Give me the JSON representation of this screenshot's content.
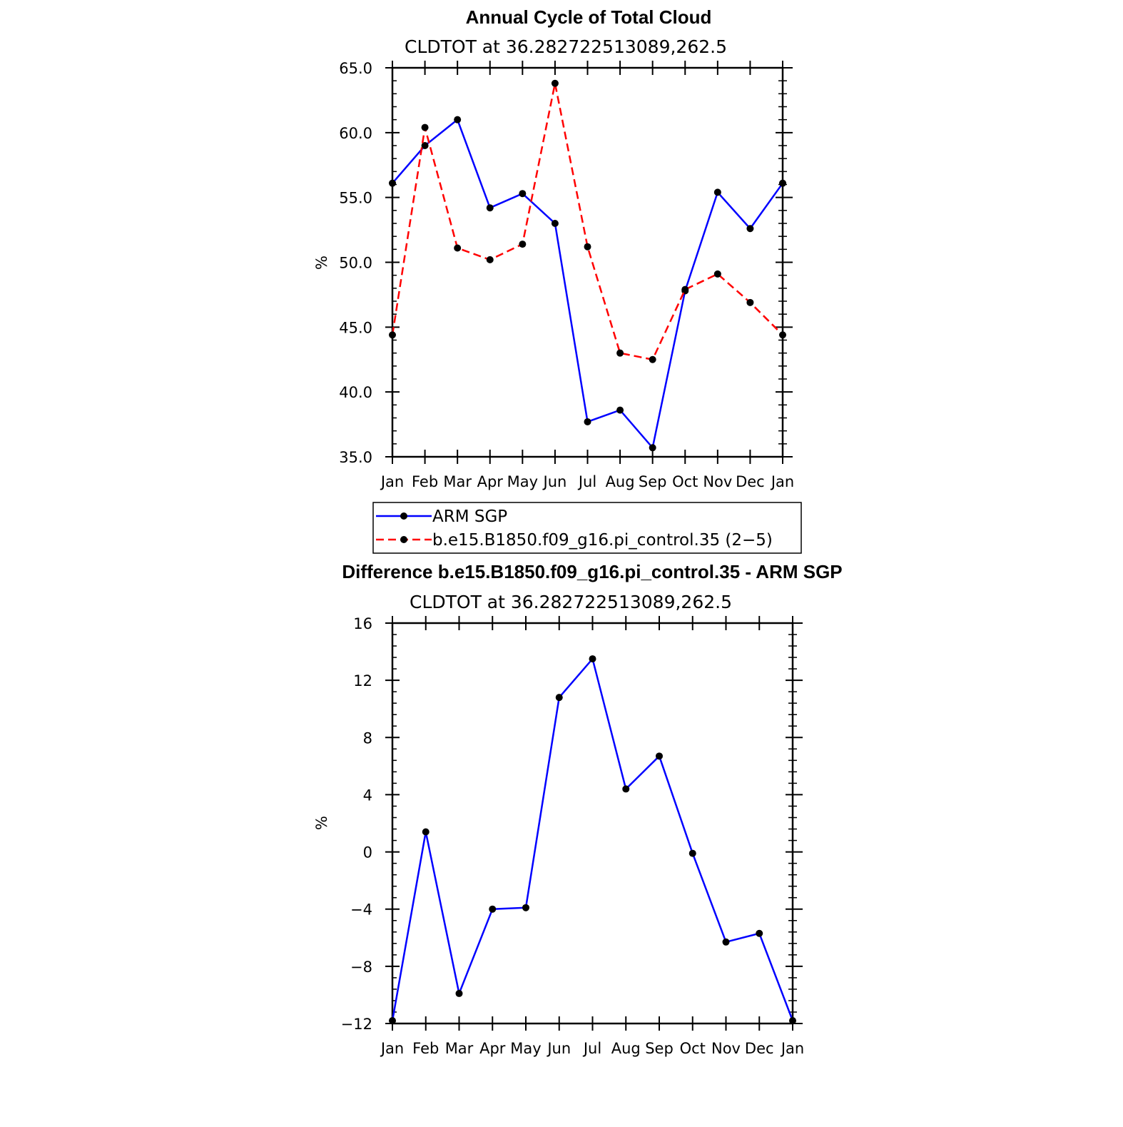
{
  "chart_data": [
    {
      "type": "line",
      "title": "Annual Cycle of Total Cloud",
      "subtitle": "CLDTOT at 36.282722513089,262.5",
      "ylabel": "%",
      "xlabel": "",
      "categories": [
        "Jan",
        "Feb",
        "Mar",
        "Apr",
        "May",
        "Jun",
        "Jul",
        "Aug",
        "Sep",
        "Oct",
        "Nov",
        "Dec",
        "Jan"
      ],
      "ylim": [
        35.0,
        65.0
      ],
      "yticks": [
        "35.0",
        "40.0",
        "45.0",
        "50.0",
        "55.0",
        "60.0",
        "65.0"
      ],
      "series": [
        {
          "name": "ARM SGP",
          "color": "#0000ff",
          "dash": "solid",
          "values": [
            56.1,
            59.0,
            61.0,
            54.2,
            55.3,
            53.0,
            37.7,
            38.6,
            35.7,
            47.8,
            55.4,
            52.6,
            56.1
          ]
        },
        {
          "name": "b.e15.B1850.f09_g16.pi_control.35 (2−5)",
          "color": "#ff0000",
          "dash": "dashed",
          "values": [
            44.4,
            60.4,
            51.1,
            50.2,
            51.4,
            63.8,
            51.2,
            43.0,
            42.5,
            47.9,
            49.1,
            46.9,
            44.4
          ]
        }
      ],
      "legend": "below"
    },
    {
      "type": "line",
      "title": "Difference b.e15.B1850.f09_g16.pi_control.35 - ARM SGP",
      "subtitle": "CLDTOT at 36.282722513089,262.5",
      "ylabel": "%",
      "xlabel": "",
      "categories": [
        "Jan",
        "Feb",
        "Mar",
        "Apr",
        "May",
        "Jun",
        "Jul",
        "Aug",
        "Sep",
        "Oct",
        "Nov",
        "Dec",
        "Jan"
      ],
      "ylim": [
        -12,
        16
      ],
      "yticks": [
        "−12",
        "−8",
        "−4",
        "0",
        "4",
        "8",
        "12",
        "16"
      ],
      "series": [
        {
          "name": "Difference",
          "color": "#0000ff",
          "dash": "solid",
          "values": [
            -11.8,
            1.4,
            -9.9,
            -4.0,
            -3.9,
            10.8,
            13.5,
            4.4,
            6.7,
            -0.1,
            -6.3,
            -5.7,
            -11.8
          ]
        }
      ]
    }
  ]
}
